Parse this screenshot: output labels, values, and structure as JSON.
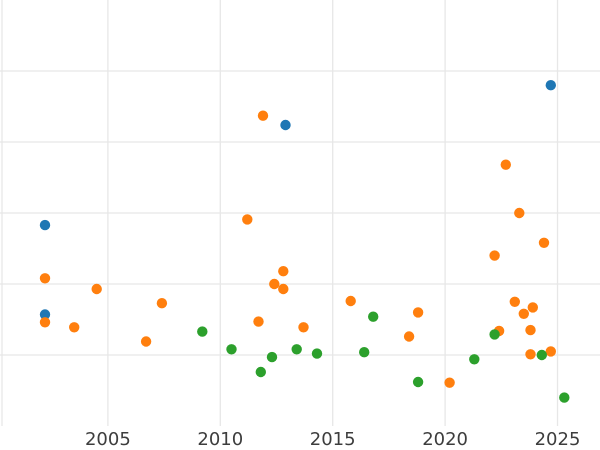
{
  "figure": {
    "background": "#ffffff",
    "grid_color": "#e7e7e7",
    "tick_label_color": "#3d3d3d"
  },
  "chart_data": {
    "type": "scatter",
    "title": "",
    "xlabel": "",
    "ylabel": "",
    "grid": true,
    "legend_position": "none",
    "x_ticks": [
      2005,
      2010,
      2015,
      2020,
      2025
    ],
    "x_range": [
      2000.2,
      2026.89
    ],
    "y_range": [
      0,
      6
    ],
    "y_gridlines": [
      1,
      2,
      3,
      4,
      5
    ],
    "series": [
      {
        "name": "series-blue",
        "color": "#1f77b4",
        "points": [
          [
            2002.2,
            2.83
          ],
          [
            2012.9,
            4.24
          ],
          [
            2024.7,
            4.8
          ],
          [
            2002.2,
            1.57
          ]
        ]
      },
      {
        "name": "series-orange",
        "color": "#ff7f0e",
        "points": [
          [
            2011.9,
            4.37
          ],
          [
            2011.2,
            2.91
          ],
          [
            2002.2,
            2.08
          ],
          [
            2004.5,
            1.93
          ],
          [
            2002.2,
            1.46
          ],
          [
            2003.5,
            1.39
          ],
          [
            2007.4,
            1.73
          ],
          [
            2006.7,
            1.19
          ],
          [
            2012.8,
            2.18
          ],
          [
            2012.4,
            2.0
          ],
          [
            2012.8,
            1.93
          ],
          [
            2011.7,
            1.47
          ],
          [
            2013.7,
            1.39
          ],
          [
            2015.8,
            1.76
          ],
          [
            2018.8,
            1.6
          ],
          [
            2018.4,
            1.26
          ],
          [
            2020.2,
            0.61
          ],
          [
            2022.7,
            3.68
          ],
          [
            2023.3,
            3.0
          ],
          [
            2022.2,
            2.4
          ],
          [
            2024.4,
            2.58
          ],
          [
            2023.1,
            1.75
          ],
          [
            2023.9,
            1.67
          ],
          [
            2023.5,
            1.58
          ],
          [
            2022.4,
            1.34
          ],
          [
            2023.8,
            1.35
          ],
          [
            2023.8,
            1.01
          ],
          [
            2024.7,
            1.05
          ]
        ]
      },
      {
        "name": "series-green",
        "color": "#2ca02c",
        "points": [
          [
            2009.2,
            1.33
          ],
          [
            2010.5,
            1.08
          ],
          [
            2012.3,
            0.97
          ],
          [
            2011.8,
            0.76
          ],
          [
            2013.4,
            1.08
          ],
          [
            2014.3,
            1.02
          ],
          [
            2016.4,
            1.04
          ],
          [
            2016.8,
            1.54
          ],
          [
            2018.8,
            0.62
          ],
          [
            2021.3,
            0.94
          ],
          [
            2022.2,
            1.29
          ],
          [
            2024.3,
            1.0
          ],
          [
            2025.3,
            0.4
          ]
        ]
      }
    ]
  }
}
